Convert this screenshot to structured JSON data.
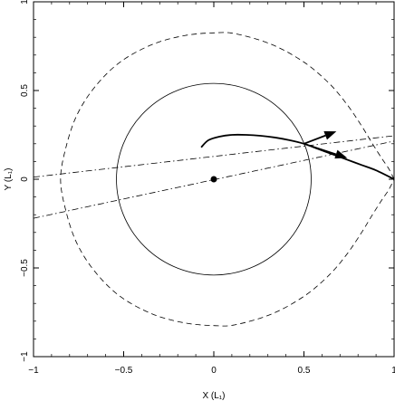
{
  "chart_data": {
    "type": "line",
    "title": "",
    "xlabel": "X (L₁)",
    "ylabel": "Y (L₁)",
    "xlim": [
      -1,
      1
    ],
    "ylim": [
      -1,
      1
    ],
    "grid": false,
    "xticks": [
      -1,
      -0.5,
      0,
      0.5,
      1
    ],
    "yticks": [
      -1,
      -0.5,
      0,
      0.5,
      1
    ],
    "xtick_labels": [
      "−1",
      "−0.5",
      "0",
      "0.5",
      "1"
    ],
    "ytick_labels": [
      "−1",
      "−0.5",
      "0",
      "0.5",
      "1"
    ],
    "series": [
      {
        "style": "solid",
        "shape": "circle",
        "center": [
          0,
          0
        ],
        "radius": 0.54
      },
      {
        "style": "dashed",
        "shape": "roche-lobe",
        "points": [
          [
            1.0,
            0.0
          ],
          [
            0.97,
            0.06
          ],
          [
            0.93,
            0.12
          ],
          [
            0.88,
            0.2
          ],
          [
            0.82,
            0.3
          ],
          [
            0.74,
            0.42
          ],
          [
            0.64,
            0.54
          ],
          [
            0.5,
            0.66
          ],
          [
            0.32,
            0.76
          ],
          [
            0.12,
            0.82
          ],
          [
            0.0,
            0.825
          ],
          [
            -0.16,
            0.81
          ],
          [
            -0.34,
            0.76
          ],
          [
            -0.52,
            0.66
          ],
          [
            -0.66,
            0.52
          ],
          [
            -0.76,
            0.36
          ],
          [
            -0.82,
            0.18
          ],
          [
            -0.85,
            0.0
          ],
          [
            -0.82,
            -0.18
          ],
          [
            -0.76,
            -0.36
          ],
          [
            -0.66,
            -0.52
          ],
          [
            -0.52,
            -0.66
          ],
          [
            -0.34,
            -0.76
          ],
          [
            -0.16,
            -0.81
          ],
          [
            0.0,
            -0.825
          ],
          [
            0.12,
            -0.82
          ],
          [
            0.32,
            -0.76
          ],
          [
            0.5,
            -0.66
          ],
          [
            0.64,
            -0.54
          ],
          [
            0.74,
            -0.42
          ],
          [
            0.82,
            -0.3
          ],
          [
            0.88,
            -0.2
          ],
          [
            0.93,
            -0.12
          ],
          [
            0.97,
            -0.06
          ],
          [
            1.0,
            0.0
          ]
        ]
      },
      {
        "style": "dashdot",
        "shape": "line",
        "points": [
          [
            -1.0,
            0.012
          ],
          [
            1.0,
            0.245
          ]
        ]
      },
      {
        "style": "dashdot",
        "shape": "line",
        "points": [
          [
            -1.0,
            -0.22
          ],
          [
            1.0,
            0.215
          ]
        ]
      },
      {
        "style": "thick-solid",
        "shape": "stream",
        "points": [
          [
            -0.07,
            0.18
          ],
          [
            -0.03,
            0.22
          ],
          [
            0.03,
            0.24
          ],
          [
            0.1,
            0.25
          ],
          [
            0.18,
            0.25
          ],
          [
            0.26,
            0.245
          ],
          [
            0.34,
            0.235
          ],
          [
            0.42,
            0.22
          ],
          [
            0.5,
            0.2
          ],
          [
            0.58,
            0.17
          ],
          [
            0.66,
            0.14
          ],
          [
            0.74,
            0.11
          ],
          [
            0.82,
            0.08
          ],
          [
            0.9,
            0.05
          ],
          [
            1.0,
            0.0
          ]
        ]
      }
    ],
    "arrows": [
      {
        "from": [
          0.5,
          0.2
        ],
        "to": [
          0.68,
          0.27
        ]
      },
      {
        "from": [
          0.5,
          0.2
        ],
        "to": [
          0.74,
          0.12
        ]
      }
    ],
    "markers": [
      {
        "shape": "filled-circle",
        "point": [
          0,
          0
        ]
      }
    ]
  }
}
